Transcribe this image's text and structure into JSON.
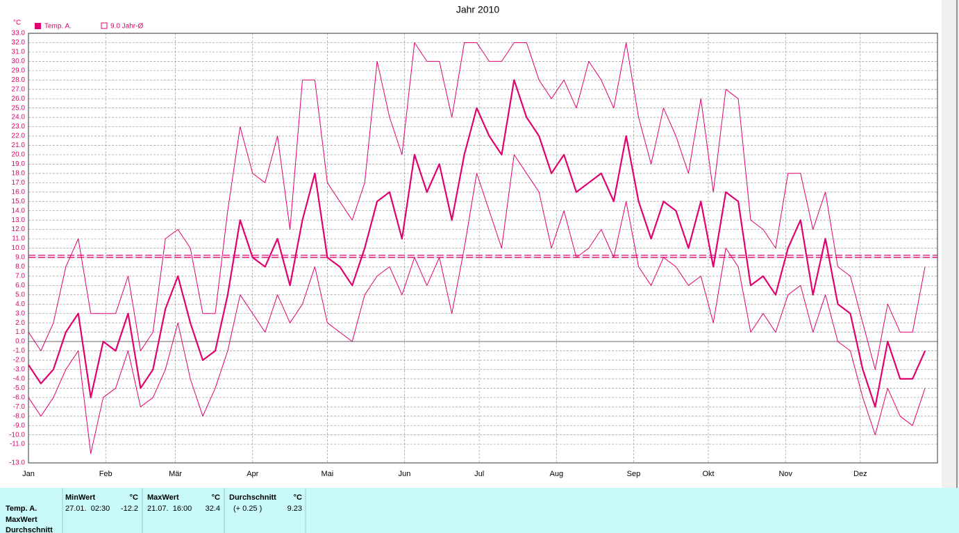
{
  "chart_data": {
    "type": "line",
    "title": "Jahr 2010",
    "y_unit": "°C",
    "xlim": [
      0,
      365
    ],
    "xticks": [
      {
        "value": 0,
        "label": "Jan"
      },
      {
        "value": 31,
        "label": "Feb"
      },
      {
        "value": 59,
        "label": "Mär"
      },
      {
        "value": 90,
        "label": "Apr"
      },
      {
        "value": 120,
        "label": "Mai"
      },
      {
        "value": 151,
        "label": "Jun"
      },
      {
        "value": 181,
        "label": "Jul"
      },
      {
        "value": 212,
        "label": "Aug"
      },
      {
        "value": 243,
        "label": "Sep"
      },
      {
        "value": 273,
        "label": "Okt"
      },
      {
        "value": 304,
        "label": "Nov"
      },
      {
        "value": 334,
        "label": "Dez"
      }
    ],
    "ylim": [
      -13,
      33
    ],
    "yticks": [
      {
        "value": 33,
        "label": "33.0"
      },
      {
        "value": 32,
        "label": "32.0"
      },
      {
        "value": 31,
        "label": "31.0"
      },
      {
        "value": 30,
        "label": "30.0"
      },
      {
        "value": 29,
        "label": "29.0"
      },
      {
        "value": 28,
        "label": "28.0"
      },
      {
        "value": 27,
        "label": "27.0"
      },
      {
        "value": 26,
        "label": "26.0"
      },
      {
        "value": 25,
        "label": "25.0"
      },
      {
        "value": 24,
        "label": "24.0"
      },
      {
        "value": 23,
        "label": "23.0"
      },
      {
        "value": 22,
        "label": "22.0"
      },
      {
        "value": 21,
        "label": "21.0"
      },
      {
        "value": 20,
        "label": "20.0"
      },
      {
        "value": 19,
        "label": "19.0"
      },
      {
        "value": 18,
        "label": "18.0"
      },
      {
        "value": 17,
        "label": "17.0"
      },
      {
        "value": 16,
        "label": "16.0"
      },
      {
        "value": 15,
        "label": "15.0"
      },
      {
        "value": 14,
        "label": "14.0"
      },
      {
        "value": 13,
        "label": "13.0"
      },
      {
        "value": 12,
        "label": "12.0"
      },
      {
        "value": 11,
        "label": "11.0"
      },
      {
        "value": 10,
        "label": "10.0"
      },
      {
        "value": 9,
        "label": "9.0"
      },
      {
        "value": 8,
        "label": "8.0"
      },
      {
        "value": 7,
        "label": "7.0"
      },
      {
        "value": 6,
        "label": "6.0"
      },
      {
        "value": 5,
        "label": "5.0"
      },
      {
        "value": 4,
        "label": "4.0"
      },
      {
        "value": 3,
        "label": "3.0"
      },
      {
        "value": 2,
        "label": "2.0"
      },
      {
        "value": 1,
        "label": "1.0"
      },
      {
        "value": 0,
        "label": "0.0"
      },
      {
        "value": -1,
        "label": "-1.0"
      },
      {
        "value": -2,
        "label": "-2.0"
      },
      {
        "value": -3,
        "label": "-3.0"
      },
      {
        "value": -4,
        "label": "-4.0"
      },
      {
        "value": -5,
        "label": "-5.0"
      },
      {
        "value": -6,
        "label": "-6.0"
      },
      {
        "value": -7,
        "label": "-7.0"
      },
      {
        "value": -8,
        "label": "-8.0"
      },
      {
        "value": -9,
        "label": "-9.0"
      },
      {
        "value": -10,
        "label": "-10.0"
      },
      {
        "value": -11,
        "label": "-11.0"
      },
      {
        "value": -13,
        "label": "-13.0"
      }
    ],
    "grid": true,
    "x": [
      0,
      5,
      10,
      15,
      20,
      25,
      30,
      35,
      40,
      45,
      50,
      55,
      60,
      65,
      70,
      75,
      80,
      85,
      90,
      95,
      100,
      105,
      110,
      115,
      120,
      125,
      130,
      135,
      140,
      145,
      150,
      155,
      160,
      165,
      170,
      175,
      180,
      185,
      190,
      195,
      200,
      205,
      210,
      215,
      220,
      225,
      230,
      235,
      240,
      245,
      250,
      255,
      260,
      265,
      270,
      275,
      280,
      285,
      290,
      295,
      300,
      305,
      310,
      315,
      320,
      325,
      330,
      335,
      340,
      345,
      350,
      355,
      360
    ],
    "series": [
      {
        "name": "Temp. A.",
        "color": "#e0006e",
        "width": 2.2,
        "values": [
          -2.5,
          -4.5,
          -3,
          1,
          3,
          -6,
          0,
          -1,
          3,
          -5,
          -3,
          3.5,
          7,
          2,
          -2,
          -1,
          5,
          13,
          9,
          8,
          11,
          6,
          13,
          18,
          9,
          8,
          6,
          10,
          15,
          16,
          11,
          20,
          16,
          19,
          13,
          20,
          25,
          22,
          20,
          28,
          24,
          22,
          18,
          20,
          16,
          17,
          18,
          15,
          22,
          15,
          11,
          15,
          14,
          10,
          15,
          8,
          16,
          15,
          6,
          7,
          5,
          10,
          13,
          5,
          11,
          4,
          3,
          -3,
          -7,
          0,
          -4,
          -4,
          -1
        ]
      },
      {
        "color": "#e0006e",
        "width": 1,
        "values": [
          1,
          -1,
          2,
          8,
          11,
          3,
          3,
          3,
          7,
          -1,
          1,
          11,
          12,
          10,
          3,
          3,
          14,
          23,
          18,
          17,
          22,
          12,
          28,
          28,
          17,
          15,
          13,
          17,
          30,
          24,
          20,
          32,
          30,
          30,
          24,
          32,
          32,
          30,
          30,
          32,
          32,
          28,
          26,
          28,
          25,
          30,
          28,
          25,
          32,
          24,
          19,
          25,
          22,
          18,
          26,
          16,
          27,
          26,
          13,
          12,
          10,
          18,
          18,
          12,
          16,
          8,
          7,
          2,
          -3,
          4,
          1,
          1,
          8
        ]
      },
      {
        "color": "#e0006e",
        "width": 1,
        "values": [
          -6,
          -8,
          -6,
          -3,
          -1,
          -12,
          -6,
          -5,
          -1,
          -7,
          -6,
          -3,
          2,
          -4,
          -8,
          -5,
          -1,
          5,
          3,
          1,
          5,
          2,
          4,
          8,
          2,
          1,
          0,
          5,
          7,
          8,
          5,
          9,
          6,
          9,
          3,
          10,
          18,
          14,
          10,
          20,
          18,
          16,
          10,
          14,
          9,
          10,
          12,
          9,
          15,
          8,
          6,
          9,
          8,
          6,
          7,
          2,
          10,
          8,
          1,
          3,
          1,
          5,
          6,
          1,
          5,
          0,
          -1,
          -6,
          -10,
          -5,
          -8,
          -9,
          -5
        ]
      }
    ],
    "reference_lines": [
      {
        "label": "9.0 Jahr-Ø",
        "value": 9.0,
        "color": "#e0006e"
      }
    ]
  },
  "table": {
    "row_labels": [
      "Temp. A.",
      "MaxWert",
      "Durchschnitt"
    ],
    "headers": [
      "MinWert",
      "°C",
      "MaxWert",
      "°C",
      "Durchschnitt",
      "°C"
    ],
    "cells": [
      "27.01.  02:30",
      "-12.2",
      "21.07.  16:00",
      "32.4",
      "(+ 0.25 )",
      "9.23"
    ]
  }
}
